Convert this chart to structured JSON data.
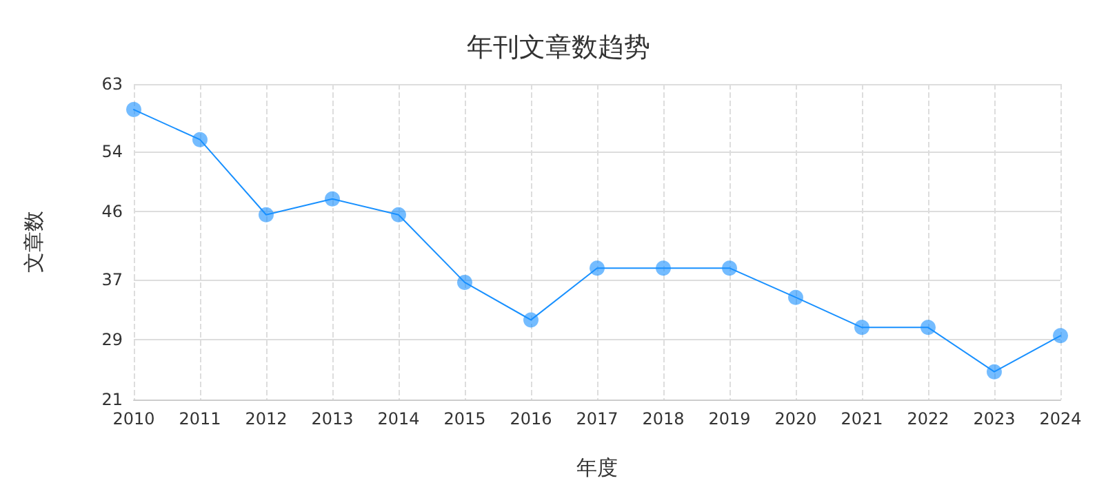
{
  "chart_data": {
    "type": "line",
    "title": "年刊文章数趋势",
    "xlabel": "年度",
    "ylabel": "文章数",
    "categories": [
      "2010",
      "2011",
      "2012",
      "2013",
      "2014",
      "2015",
      "2016",
      "2017",
      "2018",
      "2019",
      "2020",
      "2021",
      "2022",
      "2023",
      "2024"
    ],
    "series": [
      {
        "color": "#1890ff",
        "values": [
          59.6,
          55.6,
          45.6,
          47.7,
          45.6,
          36.6,
          31.6,
          38.5,
          38.5,
          38.5,
          34.6,
          30.6,
          30.6,
          24.7,
          29.5
        ]
      }
    ],
    "ylim": [
      21,
      63
    ],
    "yticks": [
      21,
      29,
      37,
      46,
      54,
      63
    ],
    "grid": true,
    "marker": "circle",
    "line_style": "solid"
  }
}
